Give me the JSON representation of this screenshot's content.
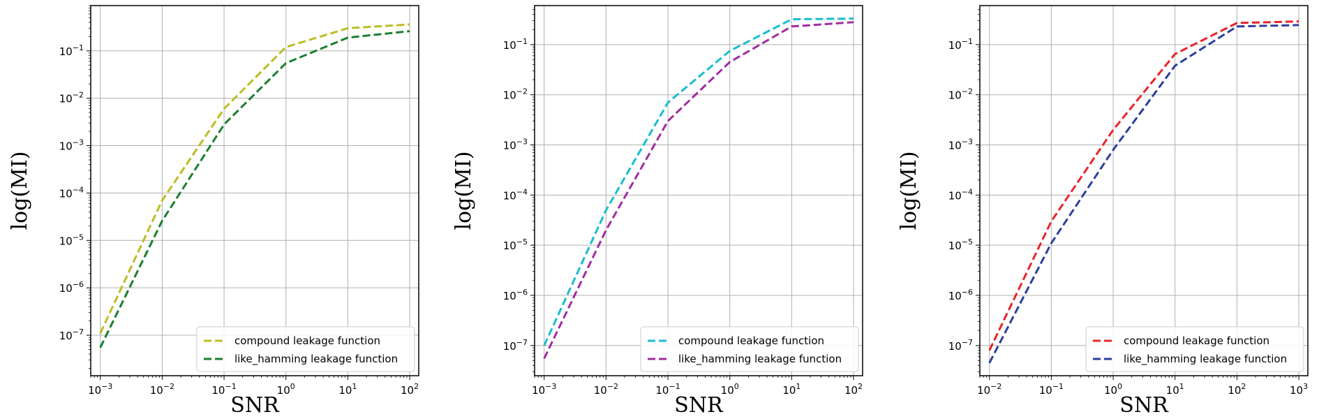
{
  "chart_data": [
    {
      "type": "line",
      "xscale": "log",
      "yscale": "log",
      "xlabel": "SNR",
      "ylabel": "log(MI)",
      "xlim": [
        0.0007,
        140
      ],
      "ylim": [
        1.4e-08,
        0.9
      ],
      "x_ticks": [
        {
          "base": "10",
          "exp": "−3"
        },
        {
          "base": "10",
          "exp": "−2"
        },
        {
          "base": "10",
          "exp": "−1"
        },
        {
          "base": "10",
          "exp": "0"
        },
        {
          "base": "10",
          "exp": "1"
        },
        {
          "base": "10",
          "exp": "2"
        }
      ],
      "y_ticks": [
        {
          "base": "10",
          "exp": "−7"
        },
        {
          "base": "10",
          "exp": "−6"
        },
        {
          "base": "10",
          "exp": "−5"
        },
        {
          "base": "10",
          "exp": "−4"
        },
        {
          "base": "10",
          "exp": "−3"
        },
        {
          "base": "10",
          "exp": "−2"
        },
        {
          "base": "10",
          "exp": "−1"
        }
      ],
      "grid": true,
      "legend_position": "lower-right",
      "series": [
        {
          "name": "compound leakage function",
          "color": "#bcbd22",
          "style": "dashed",
          "x": [
            0.001,
            0.01,
            0.1,
            1,
            10,
            100
          ],
          "y": [
            1.1e-07,
            7e-05,
            0.006,
            0.12,
            0.3,
            0.36
          ]
        },
        {
          "name": "like_hamming leakage function",
          "color": "#1a7f2e",
          "style": "dashed",
          "x": [
            0.001,
            0.01,
            0.1,
            1,
            10,
            100
          ],
          "y": [
            5.5e-08,
            2.6e-05,
            0.0028,
            0.055,
            0.19,
            0.26
          ]
        }
      ]
    },
    {
      "type": "line",
      "xscale": "log",
      "yscale": "log",
      "xlabel": "SNR",
      "ylabel": "log(MI)",
      "xlim": [
        0.0007,
        140
      ],
      "ylim": [
        2.5e-08,
        0.6
      ],
      "x_ticks": [
        {
          "base": "10",
          "exp": "−3"
        },
        {
          "base": "10",
          "exp": "−2"
        },
        {
          "base": "10",
          "exp": "−1"
        },
        {
          "base": "10",
          "exp": "0"
        },
        {
          "base": "10",
          "exp": "1"
        },
        {
          "base": "10",
          "exp": "2"
        }
      ],
      "y_ticks": [
        {
          "base": "10",
          "exp": "−7"
        },
        {
          "base": "10",
          "exp": "−6"
        },
        {
          "base": "10",
          "exp": "−5"
        },
        {
          "base": "10",
          "exp": "−4"
        },
        {
          "base": "10",
          "exp": "−3"
        },
        {
          "base": "10",
          "exp": "−2"
        },
        {
          "base": "10",
          "exp": "−1"
        }
      ],
      "grid": true,
      "legend_position": "lower-right",
      "series": [
        {
          "name": "compound leakage function",
          "color": "#17becf",
          "style": "dashed",
          "x": [
            0.001,
            0.01,
            0.1,
            1,
            10,
            100
          ],
          "y": [
            1e-07,
            5e-05,
            0.007,
            0.075,
            0.32,
            0.33
          ]
        },
        {
          "name": "like_hamming leakage function",
          "color": "#a02ca0",
          "style": "dashed",
          "x": [
            0.001,
            0.01,
            0.1,
            1,
            10,
            100
          ],
          "y": [
            5.5e-08,
            2e-05,
            0.003,
            0.045,
            0.23,
            0.28
          ]
        }
      ]
    },
    {
      "type": "line",
      "xscale": "log",
      "yscale": "log",
      "xlabel": "SNR",
      "ylabel": "log(MI)",
      "xlim": [
        0.007,
        1400
      ],
      "ylim": [
        2.5e-08,
        0.6
      ],
      "x_ticks": [
        {
          "base": "10",
          "exp": "−2"
        },
        {
          "base": "10",
          "exp": "−1"
        },
        {
          "base": "10",
          "exp": "0"
        },
        {
          "base": "10",
          "exp": "1"
        },
        {
          "base": "10",
          "exp": "2"
        },
        {
          "base": "10",
          "exp": "3"
        }
      ],
      "y_ticks": [
        {
          "base": "10",
          "exp": "−7"
        },
        {
          "base": "10",
          "exp": "−6"
        },
        {
          "base": "10",
          "exp": "−5"
        },
        {
          "base": "10",
          "exp": "−4"
        },
        {
          "base": "10",
          "exp": "−3"
        },
        {
          "base": "10",
          "exp": "−2"
        },
        {
          "base": "10",
          "exp": "−1"
        }
      ],
      "grid": true,
      "legend_position": "lower-right",
      "series": [
        {
          "name": "compound leakage function",
          "color": "#e8242a",
          "style": "dashed",
          "x": [
            0.01,
            0.1,
            1,
            10,
            100,
            1000
          ],
          "y": [
            8e-08,
            3e-05,
            0.002,
            0.065,
            0.27,
            0.29
          ]
        },
        {
          "name": "like_hamming leakage function",
          "color": "#2c3e9e",
          "style": "dashed",
          "x": [
            0.01,
            0.1,
            1,
            10,
            100,
            1000
          ],
          "y": [
            4.5e-08,
            1.1e-05,
            0.0008,
            0.038,
            0.23,
            0.245
          ]
        }
      ]
    }
  ]
}
